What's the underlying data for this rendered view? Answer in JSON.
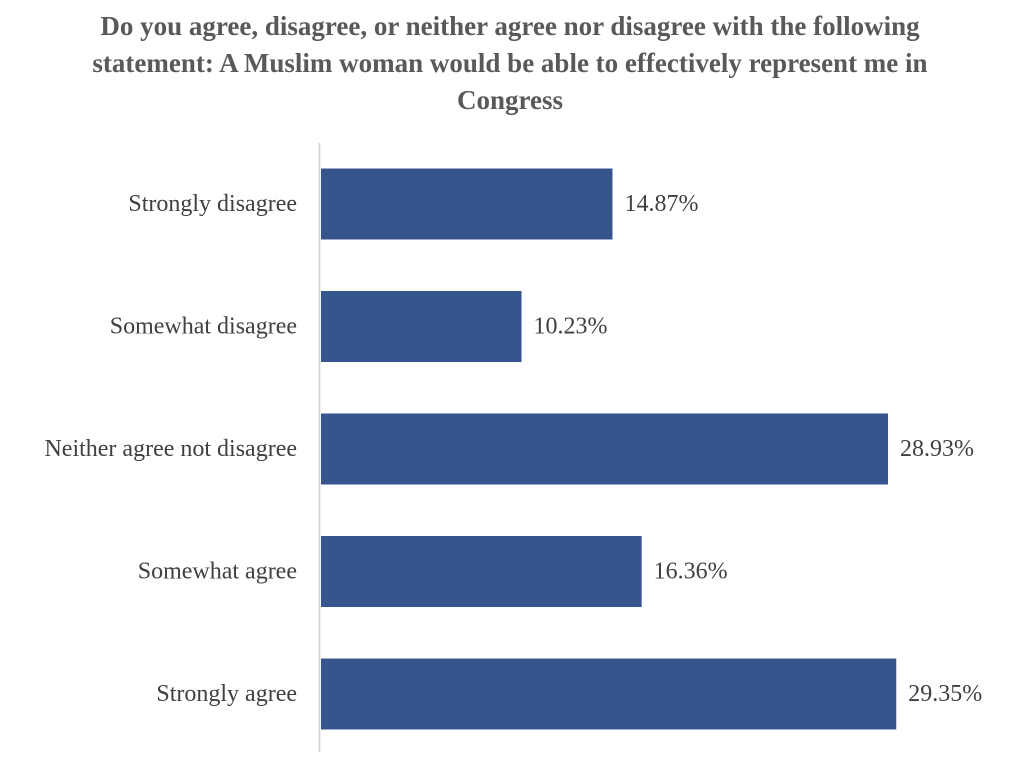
{
  "chart_data": {
    "type": "bar",
    "orientation": "horizontal",
    "title": "Do you agree, disagree, or neither agree nor disagree with the following statement: A Muslim woman would be able to effectively represent me in Congress",
    "categories": [
      "Strongly disagree",
      "Somewhat disagree",
      "Neither agree not disagree",
      "Somewhat agree",
      "Strongly agree"
    ],
    "values": [
      14.87,
      10.23,
      28.93,
      16.36,
      29.35
    ],
    "value_labels": [
      "14.87%",
      "10.23%",
      "28.93%",
      "16.36%",
      "29.35%"
    ],
    "unit": "%",
    "bar_color": "#36558F",
    "xlim": [
      0,
      30
    ],
    "grid": false,
    "legend": "none"
  }
}
